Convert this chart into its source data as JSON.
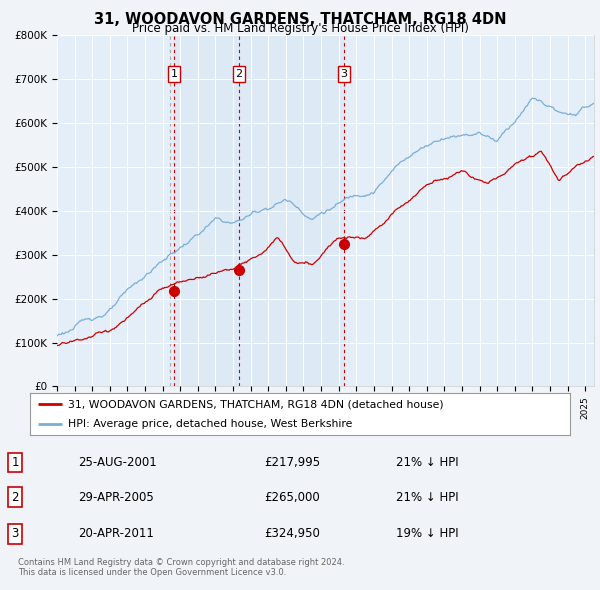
{
  "title": "31, WOODAVON GARDENS, THATCHAM, RG18 4DN",
  "subtitle": "Price paid vs. HM Land Registry's House Price Index (HPI)",
  "legend_line1": "31, WOODAVON GARDENS, THATCHAM, RG18 4DN (detached house)",
  "legend_line2": "HPI: Average price, detached house, West Berkshire",
  "transactions": [
    {
      "num": 1,
      "date": "25-AUG-2001",
      "year": 2001.65,
      "price": 217995,
      "pct": "21% ↓ HPI"
    },
    {
      "num": 2,
      "date": "29-APR-2005",
      "year": 2005.33,
      "price": 265000,
      "pct": "21% ↓ HPI"
    },
    {
      "num": 3,
      "date": "20-APR-2011",
      "year": 2011.31,
      "price": 324950,
      "pct": "19% ↓ HPI"
    }
  ],
  "hpi_color": "#7aaed6",
  "price_color": "#cc0000",
  "bg_color": "#f0f4f8",
  "plot_bg": "#e4eef8",
  "grid_color": "#ffffff",
  "footer": "Contains HM Land Registry data © Crown copyright and database right 2024.\nThis data is licensed under the Open Government Licence v3.0.",
  "ylim": [
    0,
    800000
  ],
  "yticks": [
    0,
    100000,
    200000,
    300000,
    400000,
    500000,
    600000,
    700000,
    800000
  ],
  "xlim_start": 1995.0,
  "xlim_end": 2025.5
}
